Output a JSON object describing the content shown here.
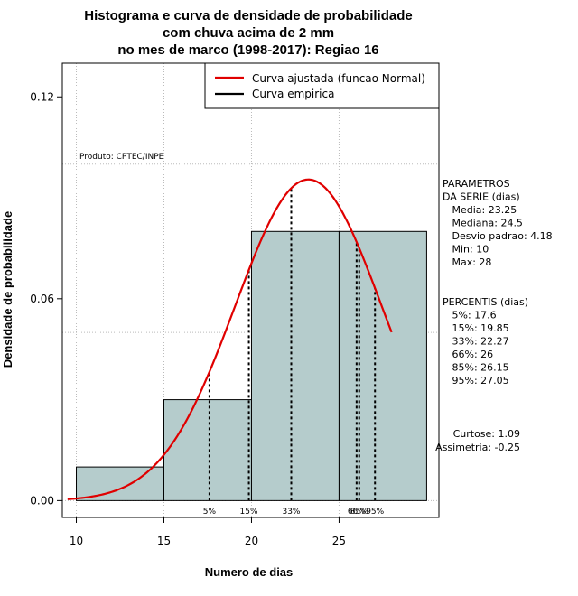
{
  "chart_data": {
    "type": "bar",
    "title_lines": [
      "Histograma e curva de densidade de probabilidade",
      "com chuva acima de 2 mm",
      "no mes de marco (1998-2017): Regiao 16"
    ],
    "xlabel": "Numero de dias",
    "ylabel": "Densidade de probabilidade",
    "xlim": [
      9.2,
      30.7
    ],
    "ylim": [
      -0.005,
      0.13
    ],
    "x_ticks": [
      10,
      15,
      20,
      25
    ],
    "y_ticks": [
      0.0,
      0.06,
      0.12
    ],
    "y_tick_labels": [
      "0.00",
      "0.06",
      "0.12"
    ],
    "grid": true,
    "grid_x": [
      10,
      15,
      20,
      25
    ],
    "grid_y": [
      0.0,
      0.05,
      0.1
    ],
    "bars": [
      {
        "x0": 10,
        "x1": 15,
        "density": 0.01
      },
      {
        "x0": 15,
        "x1": 20,
        "density": 0.03
      },
      {
        "x0": 20,
        "x1": 25,
        "density": 0.08
      },
      {
        "x0": 25,
        "x1": 30,
        "density": 0.08
      }
    ],
    "bar_color": "#b5cccc",
    "normal_curve": {
      "name": "Curva ajustada (funcao Normal)",
      "color": "#e00000",
      "mean": 23.25,
      "sd": 4.18,
      "x_range": [
        9.5,
        28.0
      ]
    },
    "empirical_curve_name": "Curva empirica",
    "empirical_curve_color": "#000000",
    "legend_position": "top-right",
    "percentile_lines": [
      {
        "label": "5%",
        "x": 17.6
      },
      {
        "label": "15%",
        "x": 19.85
      },
      {
        "label": "33%",
        "x": 22.27
      },
      {
        "label": "66%",
        "x": 26.0
      },
      {
        "label": "85%",
        "x": 26.15
      },
      {
        "label": "95%",
        "x": 27.05
      }
    ],
    "percentile_label_color": "#000000",
    "product_label": "Produto: CPTEC/INPE",
    "parameters_block": [
      "PARAMETROS",
      "DA SERIE (dias)",
      "   Media: 23.25",
      "   Mediana: 24.5",
      "   Desvio padrao: 4.18",
      "   Min: 10",
      "   Max: 28"
    ],
    "percentis_block": [
      "PERCENTIS (dias)",
      "   5%: 17.6",
      "   15%: 19.85",
      "   33%: 22.27",
      "   66%: 26",
      "   85%: 26.15",
      "   95%: 27.05"
    ],
    "stats_block": [
      "Curtose: 1.09",
      "Assimetria: -0.25"
    ]
  }
}
